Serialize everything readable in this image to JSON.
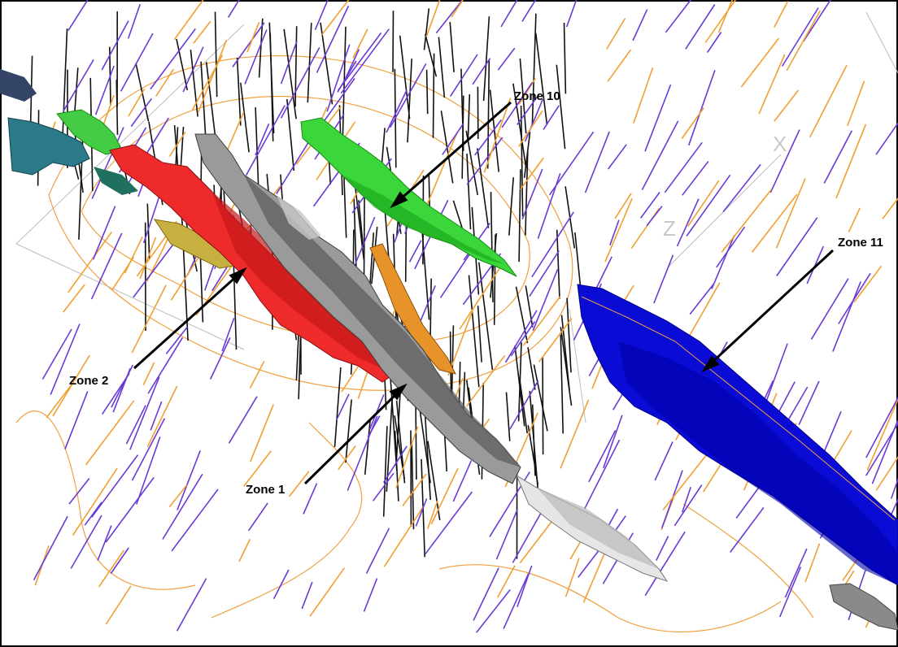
{
  "annotations": [
    {
      "id": "zone-10",
      "label": "Zone 10"
    },
    {
      "id": "zone-11",
      "label": "Zone 11"
    },
    {
      "id": "zone-2",
      "label": "Zone 2"
    },
    {
      "id": "zone-1",
      "label": "Zone 1"
    }
  ],
  "axes": {
    "x_label": "X",
    "z_label": "Z"
  },
  "colors": {
    "zone_1": "#8c8c8c",
    "zone_2": "#ee2a2a",
    "zone_10": "#2ee62e",
    "zone_11": "#0c0cd8",
    "drillhole_black": "#111111",
    "drillhole_purple": "#6a3ad6",
    "drillhole_orange": "#f0a030",
    "contour": "#f0a040"
  }
}
